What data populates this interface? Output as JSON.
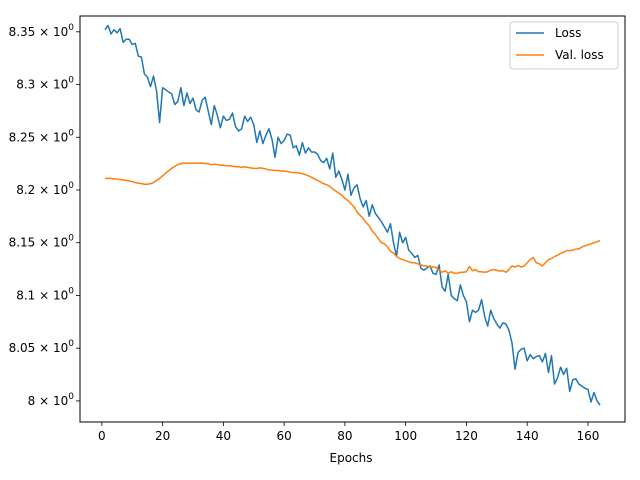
{
  "chart_data": {
    "type": "line",
    "title": "",
    "xlabel": "Epochs",
    "ylabel": "",
    "xlim": [
      -7.2,
      172.2
    ],
    "ylim": [
      7.98,
      8.365
    ],
    "xticks": [
      0,
      20,
      40,
      60,
      80,
      100,
      120,
      140,
      160
    ],
    "yticks": [
      {
        "value": 8.0,
        "base": "8",
        "exp": "0"
      },
      {
        "value": 8.05,
        "base": "8.05",
        "exp": "0"
      },
      {
        "value": 8.1,
        "base": "8.1",
        "exp": "0"
      },
      {
        "value": 8.15,
        "base": "8.15",
        "exp": "0"
      },
      {
        "value": 8.2,
        "base": "8.2",
        "exp": "0"
      },
      {
        "value": 8.25,
        "base": "8.25",
        "exp": "0"
      },
      {
        "value": 8.3,
        "base": "8.3",
        "exp": "0"
      },
      {
        "value": 8.35,
        "base": "8.35",
        "exp": "0"
      }
    ],
    "y_tick_multiplier": "× 10",
    "grid": false,
    "legend_position": "upper right",
    "series": [
      {
        "name": "Loss",
        "color": "#1f77b4",
        "x_start": 1,
        "x_step": 1,
        "values": [
          8.352,
          8.356,
          8.348,
          8.352,
          8.349,
          8.353,
          8.34,
          8.343,
          8.343,
          8.338,
          8.339,
          8.327,
          8.326,
          8.31,
          8.307,
          8.298,
          8.308,
          8.294,
          8.264,
          8.297,
          8.295,
          8.293,
          8.291,
          8.281,
          8.284,
          8.297,
          8.28,
          8.292,
          8.282,
          8.287,
          8.276,
          8.274,
          8.285,
          8.288,
          8.275,
          8.262,
          8.28,
          8.271,
          8.259,
          8.27,
          8.266,
          8.267,
          8.273,
          8.26,
          8.256,
          8.258,
          8.27,
          8.265,
          8.269,
          8.262,
          8.245,
          8.256,
          8.244,
          8.252,
          8.258,
          8.248,
          8.231,
          8.25,
          8.244,
          8.247,
          8.253,
          8.252,
          8.24,
          8.242,
          8.233,
          8.245,
          8.235,
          8.24,
          8.236,
          8.236,
          8.234,
          8.228,
          8.226,
          8.23,
          8.22,
          8.235,
          8.212,
          8.218,
          8.21,
          8.2,
          8.215,
          8.195,
          8.202,
          8.205,
          8.192,
          8.184,
          8.19,
          8.175,
          8.186,
          8.178,
          8.174,
          8.17,
          8.165,
          8.16,
          8.168,
          8.15,
          8.137,
          8.16,
          8.15,
          8.155,
          8.143,
          8.14,
          8.136,
          8.138,
          8.126,
          8.124,
          8.126,
          8.128,
          8.121,
          8.12,
          8.129,
          8.108,
          8.104,
          8.12,
          8.1,
          8.097,
          8.095,
          8.11,
          8.1,
          8.094,
          8.075,
          8.086,
          8.084,
          8.086,
          8.096,
          8.08,
          8.071,
          8.086,
          8.078,
          8.073,
          8.069,
          8.074,
          8.073,
          8.067,
          8.055,
          8.03,
          8.046,
          8.049,
          8.05,
          8.038,
          8.044,
          8.04,
          8.042,
          8.043,
          8.037,
          8.045,
          8.027,
          8.043,
          8.016,
          8.022,
          8.032,
          8.025,
          8.031,
          8.009,
          8.02,
          8.021,
          8.016,
          8.014,
          8.012,
          8.011,
          7.999,
          8.008,
          8.0,
          7.996
        ]
      },
      {
        "name": "Val. loss",
        "color": "#ff7f0e",
        "x_start": 1,
        "x_step": 1,
        "values": [
          8.211,
          8.211,
          8.211,
          8.2105,
          8.2105,
          8.21,
          8.2095,
          8.209,
          8.2085,
          8.208,
          8.207,
          8.2065,
          8.206,
          8.2055,
          8.2055,
          8.206,
          8.207,
          8.209,
          8.211,
          8.2135,
          8.216,
          8.2185,
          8.2205,
          8.2225,
          8.224,
          8.225,
          8.2255,
          8.2255,
          8.2255,
          8.2255,
          8.2255,
          8.2255,
          8.2255,
          8.225,
          8.225,
          8.224,
          8.2245,
          8.224,
          8.2235,
          8.2235,
          8.223,
          8.223,
          8.2225,
          8.222,
          8.222,
          8.2215,
          8.222,
          8.2215,
          8.221,
          8.2205,
          8.2205,
          8.221,
          8.2205,
          8.22,
          8.219,
          8.219,
          8.2185,
          8.2185,
          8.218,
          8.218,
          8.2175,
          8.217,
          8.2165,
          8.2165,
          8.216,
          8.2155,
          8.2145,
          8.2135,
          8.212,
          8.2105,
          8.209,
          8.2075,
          8.206,
          8.205,
          8.2035,
          8.201,
          8.199,
          8.197,
          8.195,
          8.192,
          8.19,
          8.187,
          8.184,
          8.179,
          8.176,
          8.173,
          8.169,
          8.166,
          8.161,
          8.158,
          8.154,
          8.15,
          8.149,
          8.146,
          8.142,
          8.14,
          8.137,
          8.135,
          8.134,
          8.133,
          8.132,
          8.131,
          8.131,
          8.13,
          8.129,
          8.128,
          8.128,
          8.127,
          8.127,
          8.1265,
          8.124,
          8.122,
          8.1235,
          8.121,
          8.1225,
          8.121,
          8.121,
          8.122,
          8.122,
          8.1225,
          8.1275,
          8.1235,
          8.1245,
          8.1225,
          8.1225,
          8.122,
          8.1225,
          8.124,
          8.1245,
          8.124,
          8.123,
          8.1235,
          8.122,
          8.1245,
          8.128,
          8.127,
          8.1285,
          8.127,
          8.128,
          8.131,
          8.134,
          8.136,
          8.131,
          8.13,
          8.128,
          8.131,
          8.134,
          8.135,
          8.137,
          8.138,
          8.14,
          8.141,
          8.1425,
          8.1425,
          8.143,
          8.144,
          8.144,
          8.146,
          8.147,
          8.148,
          8.149,
          8.15,
          8.151,
          8.152
        ]
      }
    ]
  }
}
